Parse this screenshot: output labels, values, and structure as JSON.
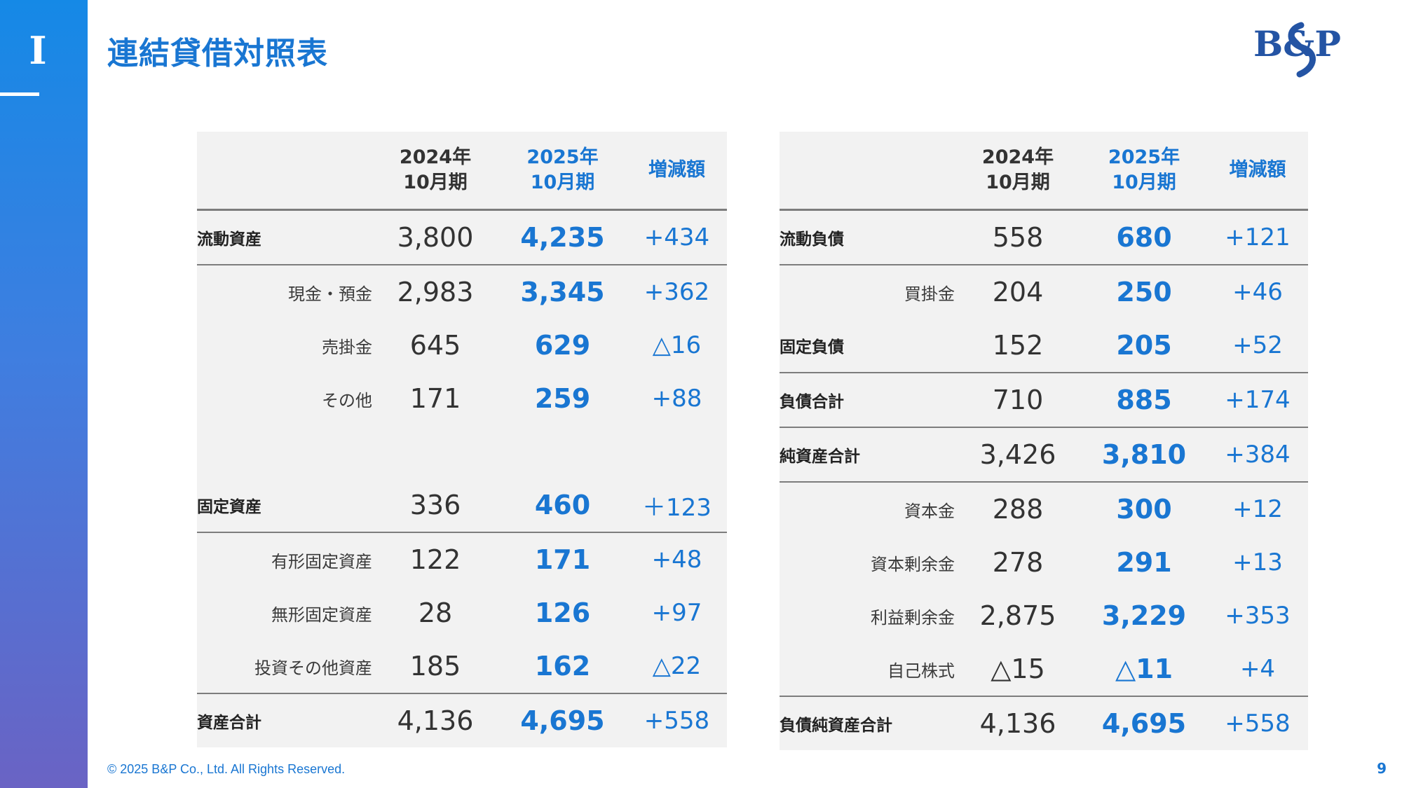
{
  "section_numeral": "Ⅰ",
  "title": "連結貸借対照表",
  "logo_text": "B&P",
  "headers": {
    "prev": "2024年\n10月期",
    "curr": "2025年\n10月期",
    "diff": "増減額"
  },
  "assets": [
    {
      "label": "流動資産",
      "level": "major",
      "prev": "3,800",
      "curr": "4,235",
      "diff": "+434",
      "rule_after": true
    },
    {
      "label": "現金・預金",
      "level": "minor",
      "prev": "2,983",
      "curr": "3,345",
      "diff": "+362",
      "rule_after": false
    },
    {
      "label": "売掛金",
      "level": "minor",
      "prev": "645",
      "curr": "629",
      "diff": "△16",
      "rule_after": false
    },
    {
      "label": "その他",
      "level": "minor",
      "prev": "171",
      "curr": "259",
      "diff": "+88",
      "rule_after": false
    },
    {
      "label": "",
      "level": "spacer",
      "prev": "",
      "curr": "",
      "diff": "",
      "rule_after": false
    },
    {
      "label": "固定資産",
      "level": "major",
      "prev": "336",
      "curr": "460",
      "diff": "＋123",
      "rule_after": true
    },
    {
      "label": "有形固定資産",
      "level": "minor",
      "prev": "122",
      "curr": "171",
      "diff": "+48",
      "rule_after": false
    },
    {
      "label": "無形固定資産",
      "level": "minor",
      "prev": "28",
      "curr": "126",
      "diff": "+97",
      "rule_after": false
    },
    {
      "label": "投資その他資産",
      "level": "minor",
      "prev": "185",
      "curr": "162",
      "diff": "△22",
      "rule_after": true
    },
    {
      "label": "資産合計",
      "level": "major",
      "prev": "4,136",
      "curr": "4,695",
      "diff": "+558",
      "rule_after": false
    }
  ],
  "liabilities": [
    {
      "label": "流動負債",
      "level": "major",
      "prev": "558",
      "curr": "680",
      "diff": "+121",
      "rule_after": true
    },
    {
      "label": "買掛金",
      "level": "minor",
      "prev": "204",
      "curr": "250",
      "diff": "+46",
      "rule_after": false
    },
    {
      "label": "固定負債",
      "level": "major",
      "prev": "152",
      "curr": "205",
      "diff": "+52",
      "rule_after": true
    },
    {
      "label": "負債合計",
      "level": "major",
      "prev": "710",
      "curr": "885",
      "diff": "+174",
      "rule_after": true
    },
    {
      "label": "純資産合計",
      "level": "major",
      "prev": "3,426",
      "curr": "3,810",
      "diff": "+384",
      "rule_after": true
    },
    {
      "label": "資本金",
      "level": "minor",
      "prev": "288",
      "curr": "300",
      "diff": "+12",
      "rule_after": false
    },
    {
      "label": "資本剰余金",
      "level": "minor",
      "prev": "278",
      "curr": "291",
      "diff": "+13",
      "rule_after": false
    },
    {
      "label": "利益剰余金",
      "level": "minor",
      "prev": "2,875",
      "curr": "3,229",
      "diff": "+353",
      "rule_after": false
    },
    {
      "label": "自己株式",
      "level": "minor",
      "prev": "△15",
      "curr": "△11",
      "diff": "+4",
      "rule_after": true
    },
    {
      "label": "負債純資産合計",
      "level": "major",
      "prev": "4,136",
      "curr": "4,695",
      "diff": "+558",
      "rule_after": false
    }
  ],
  "footer": "© 2025 B&P Co., Ltd. All Rights Reserved.",
  "page_number": "9",
  "colors": {
    "accent": "#1976d2",
    "sidebar_top": "#1589e6",
    "sidebar_bottom": "#6a63c4",
    "table_bg": "#f2f2f2",
    "logo": "#2454a4"
  }
}
